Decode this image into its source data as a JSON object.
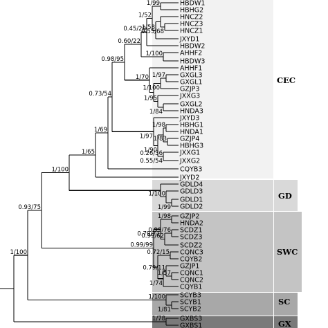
{
  "taxa": [
    "HBDW1",
    "HBHG2",
    "HNCZ2",
    "HNCZ3",
    "HNCZ1",
    "JXYD1",
    "HBDW2",
    "AHHF2",
    "HBDW3",
    "AHHF1",
    "GXGL3",
    "GXGL1",
    "GZJP3",
    "JXXG3",
    "GXGL2",
    "HNDA3",
    "JXYD3",
    "HBHG1",
    "HNDA1",
    "GZJP4",
    "HBHG3",
    "JXXG1",
    "JXXG2",
    "CQYB3",
    "JXYD2",
    "GDLD4",
    "GDLD3",
    "GDLD1",
    "GDLD2",
    "GZJP2",
    "HNDA2",
    "SCDZ1",
    "SCDZ3",
    "SCDZ2",
    "CQNC3",
    "CQYB2",
    "GZJP1",
    "CQNC1",
    "CQNC2",
    "CQYB1",
    "SCYB3",
    "SCYB1",
    "SCYB2",
    "GXBS3",
    "GXBS1"
  ],
  "supports": [
    "1/52",
    "1/99",
    "1/58",
    "0.55/68",
    "0.45/20",
    "0.60/22",
    "1/100",
    "1/97",
    "1/70",
    "1/100",
    "1/95",
    "1/84",
    "0.98/95",
    "1/98",
    "1/97",
    "1/83",
    "1/90",
    "0.26/36",
    "0.55/54",
    "0.73/54",
    "1/69",
    "1/65",
    "1/100",
    "1/99",
    "1/100",
    "1/98",
    "0.99/76",
    "0.99/62",
    "0.99/99",
    "0.79/71",
    "0.72/15",
    "0.79/11",
    "1/74",
    "1/57",
    "1/100",
    "1/81",
    "0.93/75",
    "1/100",
    "1/78"
  ],
  "clades": [
    {
      "name": "CEC",
      "fill": "#f2f2f2"
    },
    {
      "name": "GD",
      "fill": "#d9d9d9"
    },
    {
      "name": "SWC",
      "fill": "#c4c4c4"
    },
    {
      "name": "SC",
      "fill": "#a8a8a8"
    },
    {
      "name": "GX",
      "fill": "#7a7a7a"
    }
  ]
}
